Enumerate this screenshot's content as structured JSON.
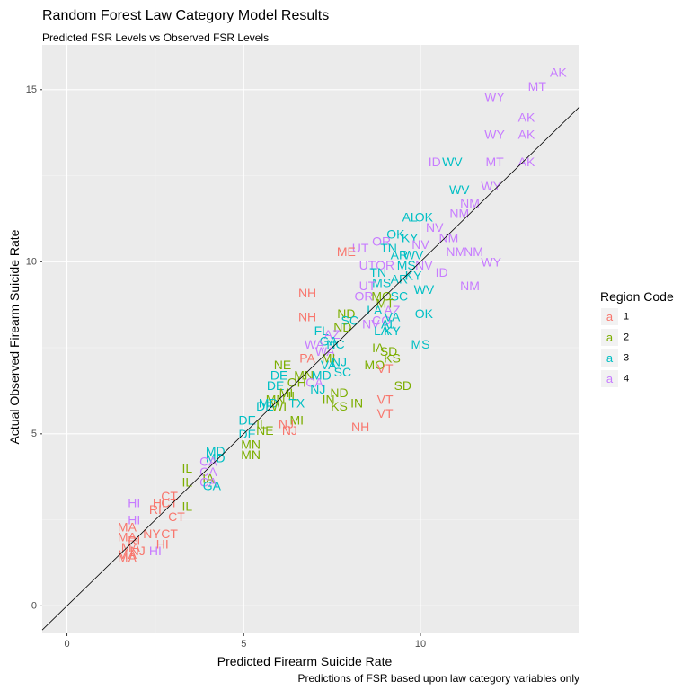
{
  "title": "Random Forest Law Category Model Results",
  "subtitle": "Predicted FSR Levels vs Observed FSR Levels",
  "caption": "Predictions of FSR based upon law category variables only",
  "legend": {
    "title": "Region Code",
    "key_glyph": "a",
    "items": [
      {
        "label": "1",
        "color": "#F8766D"
      },
      {
        "label": "2",
        "color": "#7CAE00"
      },
      {
        "label": "3",
        "color": "#00BFC4"
      },
      {
        "label": "4",
        "color": "#C77CFF"
      }
    ]
  },
  "chart_data": {
    "type": "scatter",
    "title": "Random Forest Law Category Model Results",
    "subtitle": "Predicted FSR Levels vs Observed FSR Levels",
    "xlabel": "Predicted Firearm Suicide Rate",
    "ylabel": "Actual Observed Firearm Suicide Rate",
    "xlim": [
      -0.7,
      14.5
    ],
    "ylim": [
      -0.8,
      16.3
    ],
    "x_ticks": [
      0,
      5,
      10
    ],
    "y_ticks": [
      0,
      5,
      10,
      15
    ],
    "grid": true,
    "legend_position": "right",
    "reference_line": {
      "slope": 1,
      "intercept": 0
    },
    "points": [
      {
        "label": "AK",
        "region": 4,
        "x": 13.9,
        "y": 15.5
      },
      {
        "label": "MT",
        "region": 4,
        "x": 13.3,
        "y": 15.1
      },
      {
        "label": "WY",
        "region": 4,
        "x": 12.1,
        "y": 14.8
      },
      {
        "label": "AK",
        "region": 4,
        "x": 13.0,
        "y": 14.2
      },
      {
        "label": "WY",
        "region": 4,
        "x": 12.1,
        "y": 13.7
      },
      {
        "label": "AK",
        "region": 4,
        "x": 13.0,
        "y": 13.7
      },
      {
        "label": "ID",
        "region": 4,
        "x": 10.4,
        "y": 12.9
      },
      {
        "label": "WV",
        "region": 3,
        "x": 10.9,
        "y": 12.9
      },
      {
        "label": "MT",
        "region": 4,
        "x": 12.1,
        "y": 12.9
      },
      {
        "label": "AK",
        "region": 4,
        "x": 13.0,
        "y": 12.9
      },
      {
        "label": "WV",
        "region": 3,
        "x": 11.1,
        "y": 12.1
      },
      {
        "label": "WY",
        "region": 4,
        "x": 12.0,
        "y": 12.2
      },
      {
        "label": "NM",
        "region": 4,
        "x": 11.4,
        "y": 11.7
      },
      {
        "label": "NM",
        "region": 4,
        "x": 11.1,
        "y": 11.4
      },
      {
        "label": "AL",
        "region": 3,
        "x": 9.7,
        "y": 11.3
      },
      {
        "label": "OK",
        "region": 3,
        "x": 10.1,
        "y": 11.3
      },
      {
        "label": "NV",
        "region": 4,
        "x": 10.4,
        "y": 11.0
      },
      {
        "label": "NM",
        "region": 4,
        "x": 10.8,
        "y": 10.7
      },
      {
        "label": "OK",
        "region": 3,
        "x": 9.3,
        "y": 10.8
      },
      {
        "label": "KY",
        "region": 3,
        "x": 9.7,
        "y": 10.7
      },
      {
        "label": "OR",
        "region": 4,
        "x": 8.9,
        "y": 10.6
      },
      {
        "label": "UT",
        "region": 4,
        "x": 8.3,
        "y": 10.4
      },
      {
        "label": "ME",
        "region": 1,
        "x": 7.9,
        "y": 10.3
      },
      {
        "label": "NV",
        "region": 4,
        "x": 10.0,
        "y": 10.5
      },
      {
        "label": "NM",
        "region": 4,
        "x": 11.0,
        "y": 10.3
      },
      {
        "label": "NM",
        "region": 4,
        "x": 11.5,
        "y": 10.3
      },
      {
        "label": "TN",
        "region": 3,
        "x": 9.1,
        "y": 10.4
      },
      {
        "label": "AR",
        "region": 3,
        "x": 9.4,
        "y": 10.2
      },
      {
        "label": "WV",
        "region": 3,
        "x": 9.8,
        "y": 10.2
      },
      {
        "label": "WY",
        "region": 4,
        "x": 12.0,
        "y": 10.0
      },
      {
        "label": "UT",
        "region": 4,
        "x": 8.5,
        "y": 9.9
      },
      {
        "label": "OR",
        "region": 4,
        "x": 9.0,
        "y": 9.9
      },
      {
        "label": "MS",
        "region": 3,
        "x": 9.6,
        "y": 9.9
      },
      {
        "label": "NV",
        "region": 4,
        "x": 10.1,
        "y": 9.9
      },
      {
        "label": "ID",
        "region": 4,
        "x": 10.6,
        "y": 9.7
      },
      {
        "label": "TN",
        "region": 3,
        "x": 8.8,
        "y": 9.7
      },
      {
        "label": "MS",
        "region": 3,
        "x": 8.9,
        "y": 9.4
      },
      {
        "label": "AR",
        "region": 3,
        "x": 9.4,
        "y": 9.5
      },
      {
        "label": "KY",
        "region": 3,
        "x": 9.8,
        "y": 9.6
      },
      {
        "label": "NM",
        "region": 4,
        "x": 11.4,
        "y": 9.3
      },
      {
        "label": "UT",
        "region": 4,
        "x": 8.5,
        "y": 9.3
      },
      {
        "label": "WV",
        "region": 3,
        "x": 10.1,
        "y": 9.2
      },
      {
        "label": "NH",
        "region": 1,
        "x": 6.8,
        "y": 9.1
      },
      {
        "label": "OR",
        "region": 4,
        "x": 8.4,
        "y": 9.0
      },
      {
        "label": "MO",
        "region": 2,
        "x": 8.9,
        "y": 9.0
      },
      {
        "label": "SC",
        "region": 3,
        "x": 9.4,
        "y": 9.0
      },
      {
        "label": "MT",
        "region": 2,
        "x": 9.0,
        "y": 8.8
      },
      {
        "label": "LA",
        "region": 3,
        "x": 8.7,
        "y": 8.6
      },
      {
        "label": "AZ",
        "region": 4,
        "x": 9.2,
        "y": 8.6
      },
      {
        "label": "ND",
        "region": 2,
        "x": 7.9,
        "y": 8.5
      },
      {
        "label": "OK",
        "region": 3,
        "x": 10.1,
        "y": 8.5
      },
      {
        "label": "SC",
        "region": 3,
        "x": 8.0,
        "y": 8.3
      },
      {
        "label": "CO",
        "region": 4,
        "x": 8.9,
        "y": 8.3
      },
      {
        "label": "VA",
        "region": 3,
        "x": 9.2,
        "y": 8.4
      },
      {
        "label": "NH",
        "region": 1,
        "x": 6.8,
        "y": 8.4
      },
      {
        "label": "ND",
        "region": 2,
        "x": 7.8,
        "y": 8.1
      },
      {
        "label": "NV",
        "region": 4,
        "x": 8.6,
        "y": 8.2
      },
      {
        "label": "AL",
        "region": 3,
        "x": 9.1,
        "y": 8.2
      },
      {
        "label": "FL",
        "region": 3,
        "x": 7.2,
        "y": 8.0
      },
      {
        "label": "AZ",
        "region": 4,
        "x": 7.5,
        "y": 7.9
      },
      {
        "label": "LA",
        "region": 3,
        "x": 8.9,
        "y": 8.0
      },
      {
        "label": "KY",
        "region": 3,
        "x": 9.2,
        "y": 8.0
      },
      {
        "label": "GA",
        "region": 3,
        "x": 7.4,
        "y": 7.7
      },
      {
        "label": "NC",
        "region": 3,
        "x": 7.6,
        "y": 7.6
      },
      {
        "label": "WA",
        "region": 4,
        "x": 7.0,
        "y": 7.6
      },
      {
        "label": "WA",
        "region": 4,
        "x": 7.3,
        "y": 7.4
      },
      {
        "label": "IA",
        "region": 2,
        "x": 8.8,
        "y": 7.5
      },
      {
        "label": "SD",
        "region": 2,
        "x": 9.1,
        "y": 7.4
      },
      {
        "label": "MS",
        "region": 3,
        "x": 10.0,
        "y": 7.6
      },
      {
        "label": "PA",
        "region": 1,
        "x": 6.8,
        "y": 7.2
      },
      {
        "label": "MI",
        "region": 2,
        "x": 7.4,
        "y": 7.2
      },
      {
        "label": "NJ",
        "region": 3,
        "x": 7.7,
        "y": 7.1
      },
      {
        "label": "KS",
        "region": 2,
        "x": 9.2,
        "y": 7.2
      },
      {
        "label": "NE",
        "region": 2,
        "x": 6.1,
        "y": 7.0
      },
      {
        "label": "VA",
        "region": 3,
        "x": 7.4,
        "y": 7.0
      },
      {
        "label": "MO",
        "region": 2,
        "x": 8.7,
        "y": 7.0
      },
      {
        "label": "VT",
        "region": 1,
        "x": 9.0,
        "y": 6.9
      },
      {
        "label": "MN",
        "region": 2,
        "x": 6.7,
        "y": 6.7
      },
      {
        "label": "MD",
        "region": 3,
        "x": 7.2,
        "y": 6.7
      },
      {
        "label": "CA",
        "region": 4,
        "x": 7.0,
        "y": 6.5
      },
      {
        "label": "DE",
        "region": 3,
        "x": 6.0,
        "y": 6.7
      },
      {
        "label": "OH",
        "region": 2,
        "x": 6.5,
        "y": 6.5
      },
      {
        "label": "SC",
        "region": 3,
        "x": 7.8,
        "y": 6.8
      },
      {
        "label": "DE",
        "region": 3,
        "x": 5.9,
        "y": 6.4
      },
      {
        "label": "NJ",
        "region": 3,
        "x": 7.1,
        "y": 6.3
      },
      {
        "label": "SD",
        "region": 2,
        "x": 9.5,
        "y": 6.4
      },
      {
        "label": "MI",
        "region": 2,
        "x": 6.2,
        "y": 6.2
      },
      {
        "label": "IL",
        "region": 2,
        "x": 6.4,
        "y": 6.1
      },
      {
        "label": "ND",
        "region": 2,
        "x": 7.7,
        "y": 6.2
      },
      {
        "label": "MN",
        "region": 2,
        "x": 5.9,
        "y": 6.0
      },
      {
        "label": "IN",
        "region": 2,
        "x": 7.4,
        "y": 6.0
      },
      {
        "label": "VT",
        "region": 1,
        "x": 9.0,
        "y": 6.0
      },
      {
        "label": "MD",
        "region": 3,
        "x": 5.7,
        "y": 5.9
      },
      {
        "label": "TX",
        "region": 3,
        "x": 6.5,
        "y": 5.9
      },
      {
        "label": "IN",
        "region": 2,
        "x": 8.2,
        "y": 5.9
      },
      {
        "label": "WI",
        "region": 2,
        "x": 6.0,
        "y": 5.8
      },
      {
        "label": "KS",
        "region": 2,
        "x": 7.7,
        "y": 5.8
      },
      {
        "label": "DE",
        "region": 3,
        "x": 5.6,
        "y": 5.8
      },
      {
        "label": "VT",
        "region": 1,
        "x": 9.0,
        "y": 5.6
      },
      {
        "label": "MI",
        "region": 2,
        "x": 6.5,
        "y": 5.4
      },
      {
        "label": "NJ",
        "region": 1,
        "x": 6.2,
        "y": 5.3
      },
      {
        "label": "DE",
        "region": 3,
        "x": 5.1,
        "y": 5.4
      },
      {
        "label": "IL",
        "region": 2,
        "x": 5.5,
        "y": 5.3
      },
      {
        "label": "NH",
        "region": 1,
        "x": 8.3,
        "y": 5.2
      },
      {
        "label": "NE",
        "region": 2,
        "x": 5.6,
        "y": 5.1
      },
      {
        "label": "NJ",
        "region": 1,
        "x": 6.3,
        "y": 5.1
      },
      {
        "label": "DE",
        "region": 3,
        "x": 5.1,
        "y": 5.0
      },
      {
        "label": "MN",
        "region": 2,
        "x": 5.2,
        "y": 4.7
      },
      {
        "label": "MN",
        "region": 2,
        "x": 5.2,
        "y": 4.4
      },
      {
        "label": "MD",
        "region": 3,
        "x": 4.2,
        "y": 4.5
      },
      {
        "label": "MD",
        "region": 3,
        "x": 4.2,
        "y": 4.3
      },
      {
        "label": "CA",
        "region": 4,
        "x": 4.0,
        "y": 4.2
      },
      {
        "label": "IL",
        "region": 2,
        "x": 3.4,
        "y": 4.0
      },
      {
        "label": "CA",
        "region": 4,
        "x": 4.0,
        "y": 3.9
      },
      {
        "label": "IA",
        "region": 2,
        "x": 4.0,
        "y": 3.7
      },
      {
        "label": "IL",
        "region": 2,
        "x": 3.4,
        "y": 3.6
      },
      {
        "label": "CA",
        "region": 4,
        "x": 4.0,
        "y": 3.6
      },
      {
        "label": "GA",
        "region": 3,
        "x": 4.1,
        "y": 3.5
      },
      {
        "label": "CT",
        "region": 1,
        "x": 2.9,
        "y": 3.2
      },
      {
        "label": "HI",
        "region": 4,
        "x": 1.9,
        "y": 3.0
      },
      {
        "label": "HI",
        "region": 1,
        "x": 2.6,
        "y": 3.0
      },
      {
        "label": "CT",
        "region": 1,
        "x": 2.9,
        "y": 3.0
      },
      {
        "label": "IL",
        "region": 2,
        "x": 3.4,
        "y": 2.9
      },
      {
        "label": "RI",
        "region": 1,
        "x": 2.5,
        "y": 2.8
      },
      {
        "label": "CT",
        "region": 1,
        "x": 3.1,
        "y": 2.6
      },
      {
        "label": "HI",
        "region": 4,
        "x": 1.9,
        "y": 2.5
      },
      {
        "label": "MA",
        "region": 1,
        "x": 1.7,
        "y": 2.3
      },
      {
        "label": "NY",
        "region": 1,
        "x": 2.4,
        "y": 2.1
      },
      {
        "label": "CT",
        "region": 1,
        "x": 2.9,
        "y": 2.1
      },
      {
        "label": "MA",
        "region": 1,
        "x": 1.7,
        "y": 2.0
      },
      {
        "label": "RI",
        "region": 1,
        "x": 1.9,
        "y": 1.9
      },
      {
        "label": "HI",
        "region": 1,
        "x": 2.7,
        "y": 1.8
      },
      {
        "label": "MA",
        "region": 1,
        "x": 1.8,
        "y": 1.7
      },
      {
        "label": "MA",
        "region": 1,
        "x": 1.7,
        "y": 1.4
      },
      {
        "label": "NJ",
        "region": 1,
        "x": 2.0,
        "y": 1.6
      },
      {
        "label": "HI",
        "region": 4,
        "x": 2.5,
        "y": 1.6
      },
      {
        "label": "MA",
        "region": 1,
        "x": 1.7,
        "y": 1.5
      }
    ]
  }
}
